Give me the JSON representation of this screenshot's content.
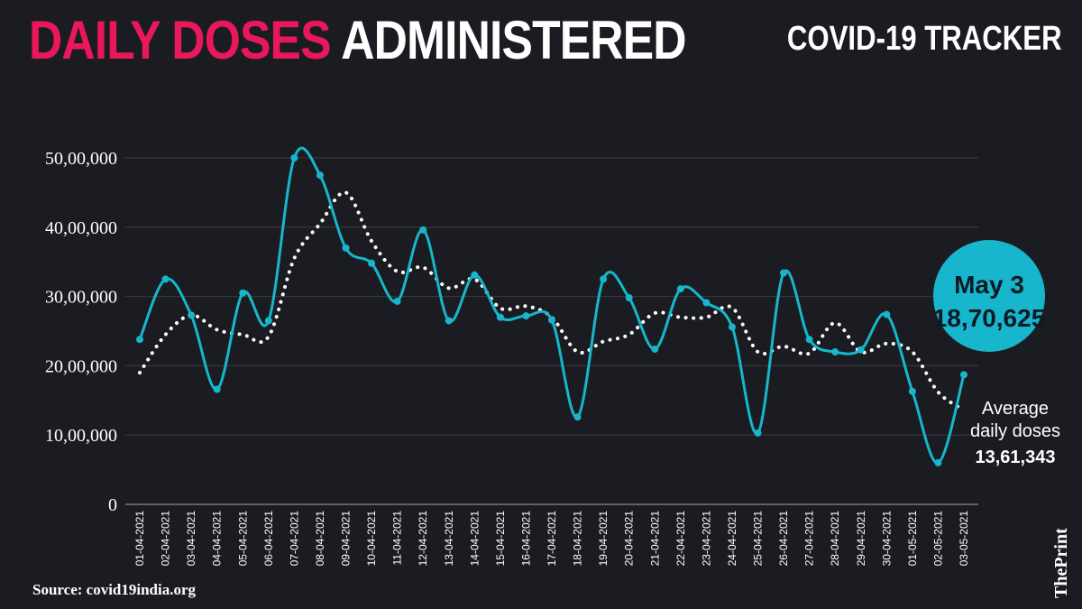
{
  "header": {
    "title_accent": "DAILY DOSES",
    "title_rest": "ADMINISTERED",
    "tracker": "COVID-19 TRACKER"
  },
  "footer": {
    "source": "Source: covid19india.org",
    "logo": "ThePrint"
  },
  "colors": {
    "background": "#1b1c21",
    "accent": "#e8185a",
    "series": "#17b6cc",
    "average": "#ffffff"
  },
  "callout": {
    "date": "May 3",
    "value": "18,70,625"
  },
  "average_label": {
    "line1": "Average",
    "line2": "daily doses",
    "value": "13,61,343"
  },
  "chart_data": {
    "type": "line",
    "ylim": [
      0,
      5000000
    ],
    "ytick_values": [
      0,
      1000000,
      2000000,
      3000000,
      4000000,
      5000000
    ],
    "ytick_labels": [
      "0",
      "10,00,000",
      "20,00,000",
      "30,00,000",
      "40,00,000",
      "50,00,000"
    ],
    "grid": true,
    "categories": [
      "01-04-2021",
      "02-04-2021",
      "03-04-2021",
      "04-04-2021",
      "05-04-2021",
      "06-04-2021",
      "07-04-2021",
      "08-04-2021",
      "09-04-2021",
      "10-04-2021",
      "11-04-2021",
      "12-04-2021",
      "13-04-2021",
      "14-04-2021",
      "15-04-2021",
      "16-04-2021",
      "17-04-2021",
      "18-04-2021",
      "19-04-2021",
      "20-04-2021",
      "21-04-2021",
      "22-04-2021",
      "23-04-2021",
      "24-04-2021",
      "25-04-2021",
      "26-04-2021",
      "27-04-2021",
      "28-04-2021",
      "29-04-2021",
      "30-04-2021",
      "01-05-2021",
      "02-05-2021",
      "03-05-2021"
    ],
    "series": [
      {
        "style": "solid",
        "values": [
          2380000,
          3250000,
          2730000,
          1660000,
          3050000,
          2650000,
          5000000,
          4750000,
          3700000,
          3480000,
          2930000,
          3960000,
          2650000,
          3310000,
          2700000,
          2720000,
          2660000,
          1260000,
          3250000,
          2980000,
          2240000,
          3110000,
          2910000,
          2560000,
          1030000,
          3340000,
          2380000,
          2200000,
          2230000,
          2740000,
          1630000,
          600000,
          1870625
        ]
      },
      {
        "style": "dotted",
        "values": [
          1900000,
          2450000,
          2730000,
          2520000,
          2450000,
          2420000,
          3550000,
          4050000,
          4500000,
          3800000,
          3360000,
          3420000,
          3120000,
          3250000,
          2830000,
          2860000,
          2700000,
          2200000,
          2350000,
          2450000,
          2760000,
          2700000,
          2700000,
          2840000,
          2200000,
          2280000,
          2180000,
          2620000,
          2200000,
          2320000,
          2200000,
          1620000,
          1361343
        ]
      }
    ]
  }
}
